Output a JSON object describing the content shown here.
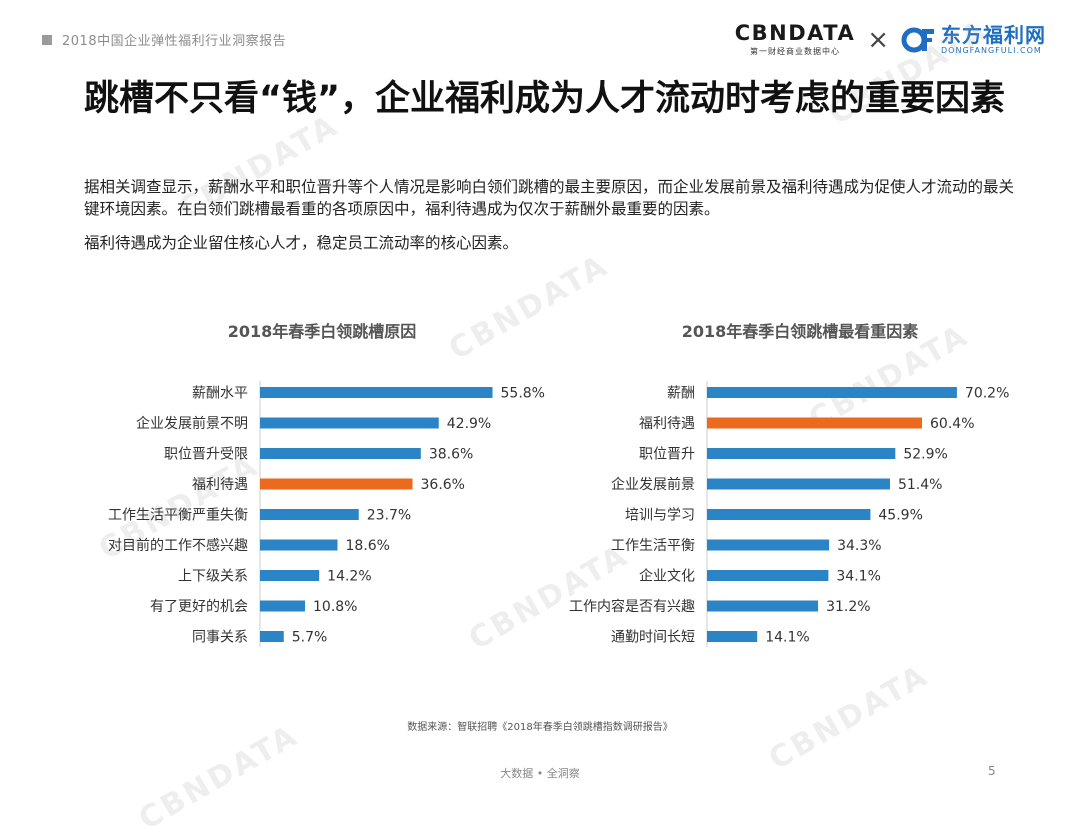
{
  "header": {
    "report_title": "2018中国企业弹性福利行业洞察报告",
    "cbn_logo": "CBNDATA",
    "cbn_sub": "第一财经商业数据中心",
    "times": "×",
    "df_name": "东方福利网",
    "df_url": "DONGFANGFULI.COM"
  },
  "headline": "跳槽不只看“钱”，企业福利成为人才流动时考虑的重要因素",
  "paragraphs": [
    "据相关调查显示，薪酬水平和职位晋升等个人情况是影响白领们跳槽的最主要原因，而企业发展前景及福利待遇成为促使人才流动的最关键环境因素。在白领们跳槽最看重的各项原因中，福利待遇成为仅次于薪酬外最重要的因素。",
    "福利待遇成为企业留住核心人才，稳定员工流动率的核心因素。"
  ],
  "colors": {
    "bar": "#2b84c6",
    "highlight": "#ec6a1e",
    "axis": "#cccccc",
    "label": "#333333"
  },
  "chart_data": [
    {
      "type": "bar",
      "orientation": "horizontal",
      "title": "2018年春季白领跳槽原因",
      "categories": [
        "薪酬水平",
        "企业发展前景不明",
        "职位晋升受限",
        "福利待遇",
        "工作生活平衡严重失衡",
        "对目前的工作不感兴趣",
        "上下级关系",
        "有了更好的机会",
        "同事关系"
      ],
      "values": [
        55.8,
        42.9,
        38.6,
        36.6,
        23.7,
        18.6,
        14.2,
        10.8,
        5.7
      ],
      "value_labels": [
        "55.8%",
        "42.9%",
        "38.6%",
        "36.6%",
        "23.7%",
        "18.6%",
        "14.2%",
        "10.8%",
        "5.7%"
      ],
      "highlight_index": 3,
      "xlim": [
        0,
        60
      ]
    },
    {
      "type": "bar",
      "orientation": "horizontal",
      "title": "2018年春季白领跳槽最看重因素",
      "categories": [
        "薪酬",
        "福利待遇",
        "职位晋升",
        "企业发展前景",
        "培训与学习",
        "工作生活平衡",
        "企业文化",
        "工作内容是否有兴趣",
        "通勤时间长短"
      ],
      "values": [
        70.2,
        60.4,
        52.9,
        51.4,
        45.9,
        34.3,
        34.1,
        31.2,
        14.1
      ],
      "value_labels": [
        "70.2%",
        "60.4%",
        "52.9%",
        "51.4%",
        "45.9%",
        "34.3%",
        "34.1%",
        "31.2%",
        "14.1%"
      ],
      "highlight_index": 1,
      "xlim": [
        0,
        75
      ]
    }
  ],
  "source": "数据来源：智联招聘《2018年春季白领跳槽指数调研报告》",
  "footer": {
    "center": "大数据 • 全洞察",
    "page": "5"
  },
  "watermark": "CBNDATA"
}
